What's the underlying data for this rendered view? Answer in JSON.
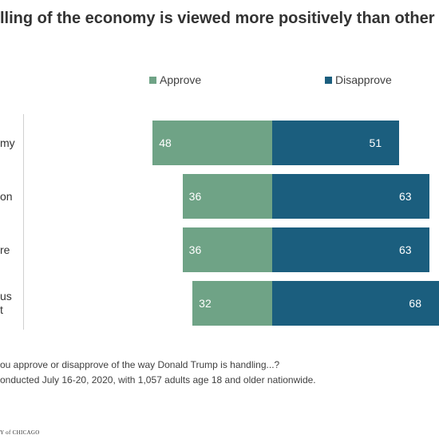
{
  "title": "lling of the economy is viewed more positively than other",
  "legend": {
    "approve_label": "Approve",
    "disapprove_label": "Disapprove"
  },
  "colors": {
    "approve": "#6fa386",
    "disapprove": "#1b5e7e"
  },
  "categories": [
    {
      "label_lines": [
        "my"
      ]
    },
    {
      "label_lines": [
        "on"
      ]
    },
    {
      "label_lines": [
        "re"
      ]
    },
    {
      "label_lines": [
        "us",
        "t"
      ]
    }
  ],
  "chart_data": {
    "type": "bar",
    "orientation": "horizontal-diverging",
    "categories": [
      "my",
      "on",
      "re",
      "us t"
    ],
    "series": [
      {
        "name": "Approve",
        "values": [
          48,
          36,
          36,
          32
        ]
      },
      {
        "name": "Disapprove",
        "values": [
          51,
          63,
          63,
          68
        ]
      }
    ],
    "title": "lling of the economy is viewed more positively than other",
    "legend_position": "top",
    "grid": false
  },
  "footnotes": {
    "line1": "ou approve or disapprove of the way Donald Trump is handling...?",
    "line2": "onducted July 16-20, 2020, with 1,057 adults age 18 and older nationwide."
  },
  "logo_text": "Y of CHICAGO"
}
